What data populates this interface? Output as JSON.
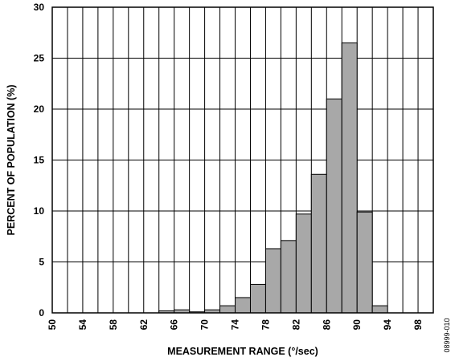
{
  "chart_data": {
    "type": "bar",
    "title": "",
    "xlabel": "MEASUREMENT RANGE (°/sec)",
    "ylabel": "PERCENT OF POPULATION (%)",
    "ylim": [
      0,
      30
    ],
    "xlim": [
      50,
      100
    ],
    "bin_width": 2,
    "x_tick_labels": [
      "50",
      "54",
      "58",
      "62",
      "66",
      "70",
      "74",
      "78",
      "82",
      "86",
      "90",
      "94",
      "98"
    ],
    "y_tick_labels": [
      "0",
      "5",
      "10",
      "15",
      "20",
      "25",
      "30"
    ],
    "grid": true,
    "bar_color": "#a8a8a8",
    "bins": [
      64,
      66,
      68,
      70,
      72,
      74,
      76,
      78,
      80,
      82,
      84,
      86,
      88,
      90,
      92
    ],
    "values": [
      0.2,
      0.3,
      0.1,
      0.3,
      0.7,
      1.5,
      2.8,
      6.3,
      7.1,
      9.7,
      13.6,
      21.0,
      26.5,
      9.9,
      0.7
    ]
  },
  "figure_id": "08999-010"
}
